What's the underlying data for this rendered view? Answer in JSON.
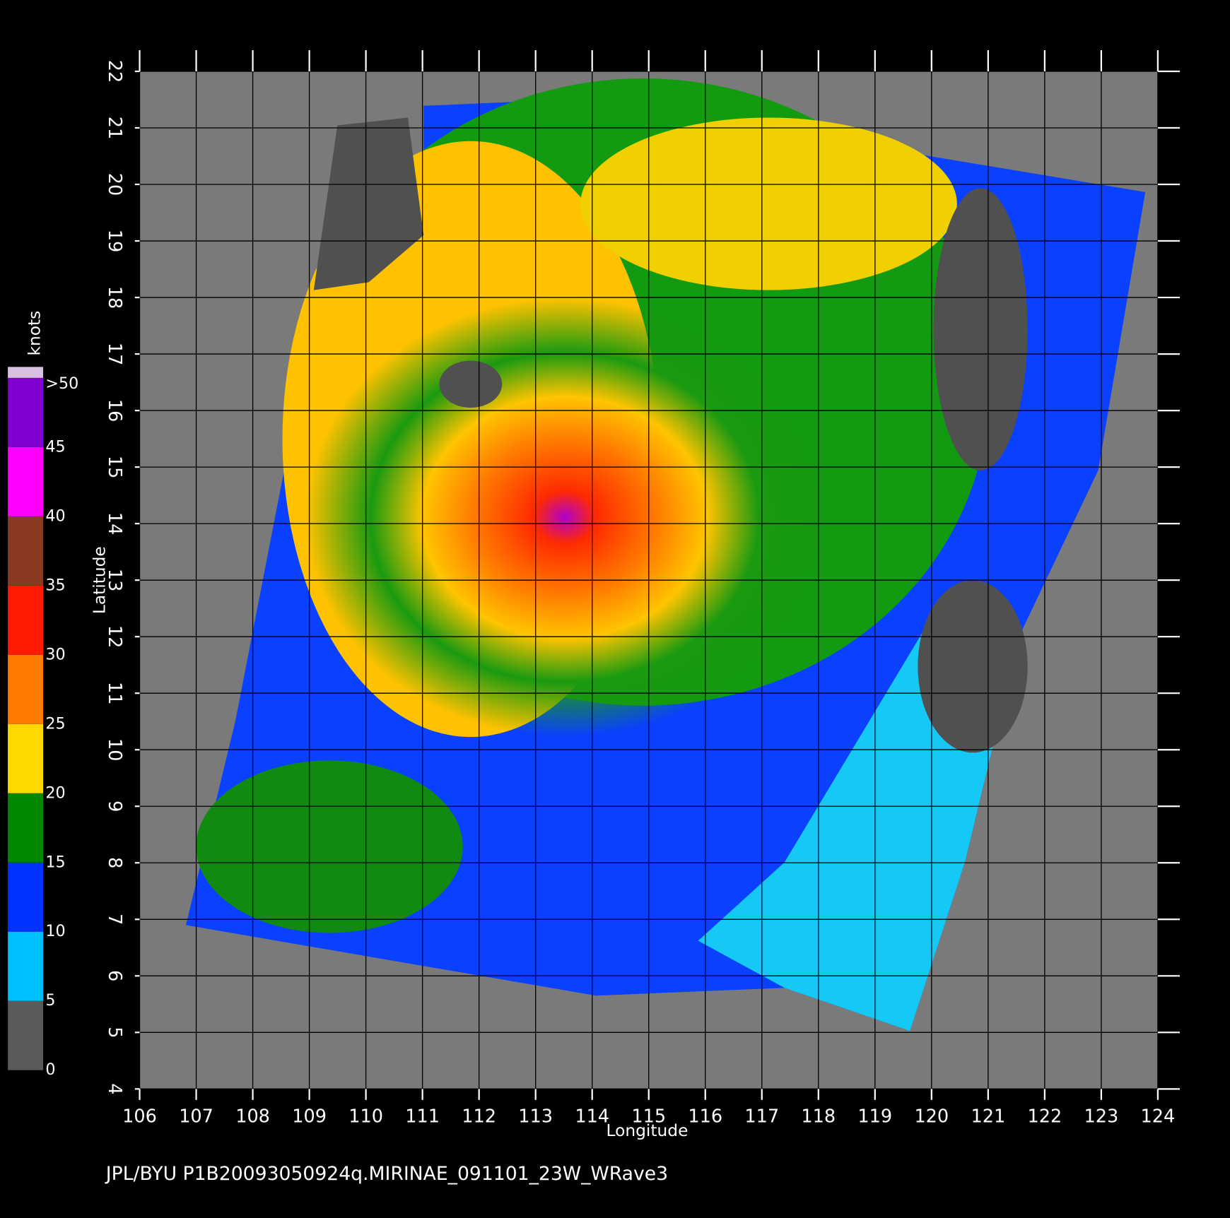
{
  "map": {
    "xlabel": "Longitude",
    "ylabel": "Latitude",
    "xlim": [
      106,
      124
    ],
    "ylim": [
      4,
      22
    ],
    "xticks": [
      106,
      107,
      108,
      109,
      110,
      111,
      112,
      113,
      114,
      115,
      116,
      117,
      118,
      119,
      120,
      121,
      122,
      123,
      124
    ],
    "yticks": [
      4,
      5,
      6,
      7,
      8,
      9,
      10,
      11,
      12,
      13,
      14,
      15,
      16,
      17,
      18,
      19,
      20,
      21,
      22
    ],
    "grid": true
  },
  "colorbar": {
    "label": "knots",
    "range": [
      0,
      50
    ],
    "ticks": [
      0,
      5,
      10,
      15,
      20,
      25,
      30,
      35,
      40,
      45,
      {
        "value": 50,
        "label": ">50"
      }
    ],
    "colors": [
      "#5a5a5a",
      "#00bfff",
      "#0033ff",
      "#008800",
      "#ffd800",
      "#ff7a00",
      "#ff1a00",
      "#8a3a20",
      "#ff00ff",
      "#8000d0"
    ]
  },
  "footer": "JPL/BYU  P1B20093050924q.MIRINAE_091101_23W_WRave3"
}
